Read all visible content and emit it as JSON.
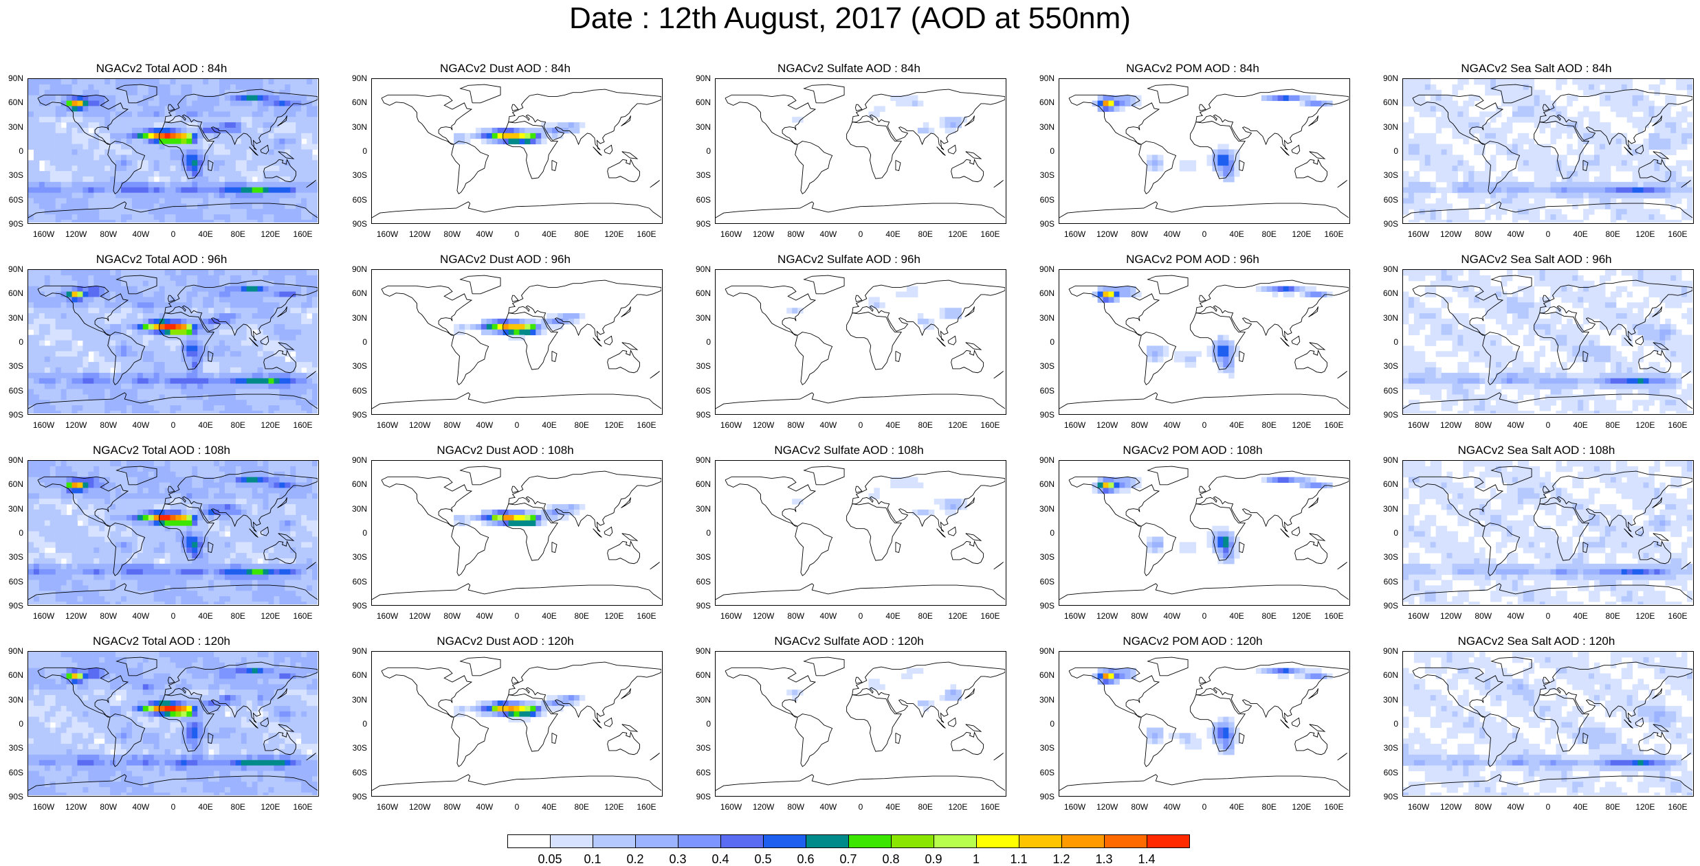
{
  "title": "Date : 12th August, 2017 (AOD at 550nm)",
  "lat_ticks": [
    "90N",
    "60N",
    "30N",
    "0",
    "30S",
    "60S",
    "90S"
  ],
  "lon_ticks": [
    "160W",
    "120W",
    "80W",
    "40W",
    "0",
    "40E",
    "80E",
    "120E",
    "160E"
  ],
  "panels": [
    {
      "title": "NGACv2 Total AOD : 84h",
      "species": "total"
    },
    {
      "title": "NGACv2 Dust AOD : 84h",
      "species": "dust"
    },
    {
      "title": "NGACv2 Sulfate AOD : 84h",
      "species": "sulfate"
    },
    {
      "title": "NGACv2 POM AOD : 84h",
      "species": "pom"
    },
    {
      "title": "NGACv2 Sea Salt AOD : 84h",
      "species": "seasalt"
    },
    {
      "title": "NGACv2 Total AOD : 96h",
      "species": "total"
    },
    {
      "title": "NGACv2 Dust AOD : 96h",
      "species": "dust"
    },
    {
      "title": "NGACv2 Sulfate AOD : 96h",
      "species": "sulfate"
    },
    {
      "title": "NGACv2 POM AOD : 96h",
      "species": "pom"
    },
    {
      "title": "NGACv2 Sea Salt AOD : 96h",
      "species": "seasalt"
    },
    {
      "title": "NGACv2 Total AOD : 108h",
      "species": "total"
    },
    {
      "title": "NGACv2 Dust AOD : 108h",
      "species": "dust"
    },
    {
      "title": "NGACv2 Sulfate AOD : 108h",
      "species": "sulfate"
    },
    {
      "title": "NGACv2 POM AOD : 108h",
      "species": "pom"
    },
    {
      "title": "NGACv2 Sea Salt AOD : 108h",
      "species": "seasalt"
    },
    {
      "title": "NGACv2 Total AOD : 120h",
      "species": "total"
    },
    {
      "title": "NGACv2 Dust AOD : 120h",
      "species": "dust"
    },
    {
      "title": "NGACv2 Sulfate AOD : 120h",
      "species": "sulfate"
    },
    {
      "title": "NGACv2 POM AOD : 120h",
      "species": "pom"
    },
    {
      "title": "NGACv2 Sea Salt  AOD : 120h",
      "species": "seasalt"
    }
  ],
  "colorbar": {
    "labels": [
      "0.05",
      "0.1",
      "0.2",
      "0.3",
      "0.4",
      "0.5",
      "0.6",
      "0.7",
      "0.8",
      "0.9",
      "1",
      "1.1",
      "1.2",
      "1.3",
      "1.4"
    ],
    "colors": [
      "#ffffff",
      "#d6e2ff",
      "#b5c9ff",
      "#9cb3ff",
      "#7d96ff",
      "#5a6cf2",
      "#1e5ff0",
      "#008a8a",
      "#3de600",
      "#8ae600",
      "#b8ff4d",
      "#ffff00",
      "#ffc400",
      "#ff9a00",
      "#ff6a00",
      "#ff2a00"
    ]
  }
}
